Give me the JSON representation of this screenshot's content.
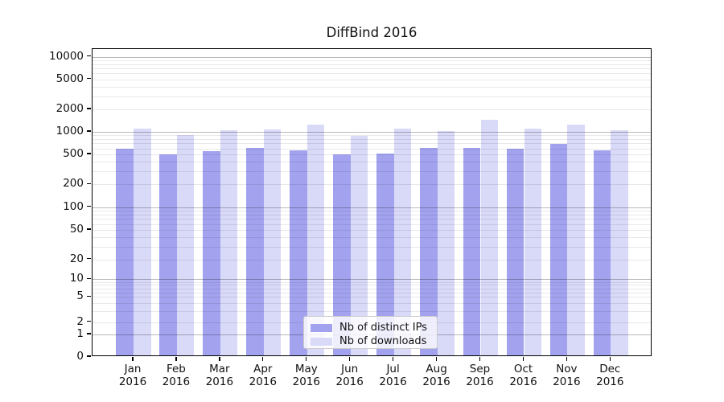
{
  "chart_data": {
    "type": "bar",
    "title": "DiffBind 2016",
    "categories": [
      "Jan",
      "Feb",
      "Mar",
      "Apr",
      "May",
      "Jun",
      "Jul",
      "Aug",
      "Sep",
      "Oct",
      "Nov",
      "Dec"
    ],
    "year_label": "2016",
    "series": [
      {
        "name": "Nb of distinct IPs",
        "color": "#a2a2ef",
        "values": [
          570,
          475,
          530,
          575,
          545,
          475,
          490,
          580,
          575,
          570,
          660,
          535
        ]
      },
      {
        "name": "Nb of downloads",
        "color": "#d9d9f8",
        "values": [
          1050,
          855,
          1010,
          1020,
          1200,
          840,
          1055,
          975,
          1380,
          1055,
          1190,
          990
        ]
      }
    ],
    "xlabel": "",
    "ylabel": "",
    "y_ticks": [
      0,
      1,
      2,
      5,
      10,
      20,
      50,
      100,
      200,
      500,
      1000,
      2000,
      5000,
      10000
    ],
    "y_major_ticks": [
      1,
      10,
      100,
      1000,
      10000
    ],
    "y_scale": "log-with-zero",
    "ylim": [
      0,
      12800
    ],
    "grid": "on",
    "legend_position": "lower center"
  }
}
